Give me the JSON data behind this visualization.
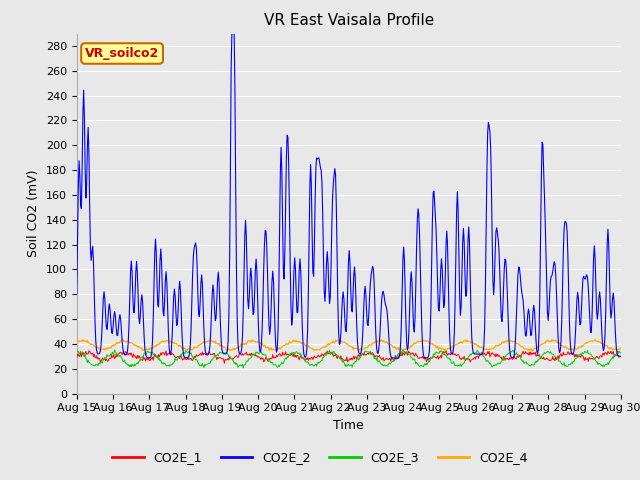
{
  "title": "VR East Vaisala Profile",
  "ylabel": "Soil CO2 (mV)",
  "xlabel": "Time",
  "annotation": "VR_soilco2",
  "ylim": [
    0,
    290
  ],
  "yticks": [
    0,
    20,
    40,
    60,
    80,
    100,
    120,
    140,
    160,
    180,
    200,
    220,
    240,
    260,
    280
  ],
  "x_start_day": 15,
  "x_end_day": 30,
  "x_tick_days": [
    15,
    16,
    17,
    18,
    19,
    20,
    21,
    22,
    23,
    24,
    25,
    26,
    27,
    28,
    29,
    30
  ],
  "colors": {
    "CO2E_1": "#ff0000",
    "CO2E_2": "#0000ff",
    "CO2E_3": "#00cc00",
    "CO2E_4": "#ffaa00"
  },
  "bg_color": "#e8e8e8",
  "annotation_bg": "#ffff99",
  "annotation_text_color": "#cc0000",
  "annotation_edge_color": "#cc6600",
  "title_fontsize": 11,
  "axis_fontsize": 9,
  "tick_fontsize": 8,
  "legend_fontsize": 9,
  "n_points": 720,
  "grid_color": "#ffffff",
  "spine_color": "#aaaaaa"
}
